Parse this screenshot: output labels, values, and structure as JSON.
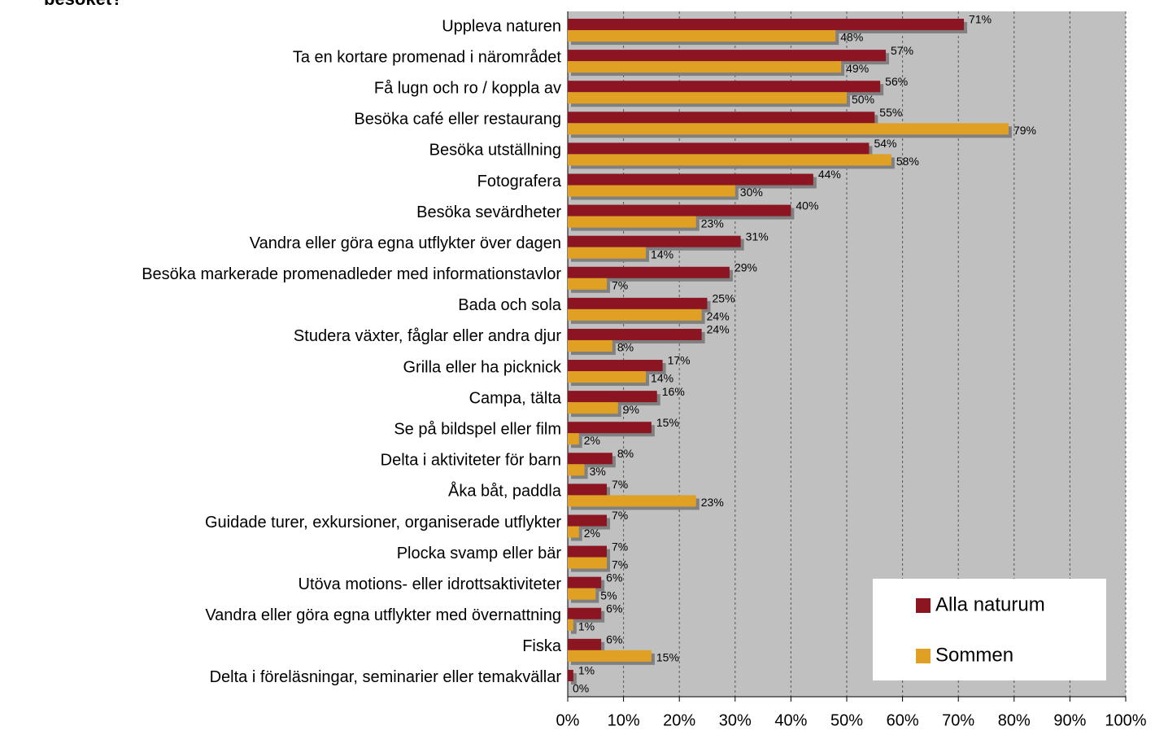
{
  "chart_data": {
    "type": "bar",
    "orientation": "horizontal",
    "title": "besöket?",
    "categories": [
      "Uppleva naturen",
      "Ta en kortare promenad i närområdet",
      "Få lugn och ro / koppla av",
      "Besöka café eller restaurang",
      "Besöka utställning",
      "Fotografera",
      "Besöka sevärdheter",
      "Vandra eller göra egna utflykter över dagen",
      "Besöka markerade promenadleder med informationstavlor",
      "Bada och sola",
      "Studera växter, fåglar eller andra djur",
      "Grilla eller ha picknick",
      "Campa, tälta",
      "Se på bildspel eller film",
      "Delta i aktiviteter för barn",
      "Åka båt, paddla",
      "Guidade turer, exkursioner, organiserade utflykter",
      "Plocka svamp eller bär",
      "Utöva motions- eller idrottsaktiviteter",
      "Vandra eller göra egna utflykter med övernattning",
      "Fiska",
      "Delta i föreläsningar, seminarier eller temakvällar"
    ],
    "series": [
      {
        "name": "Alla naturum",
        "color": "#8c1522",
        "values": [
          71,
          57,
          56,
          55,
          54,
          44,
          40,
          31,
          29,
          25,
          24,
          17,
          16,
          15,
          8,
          7,
          7,
          7,
          6,
          6,
          6,
          1
        ],
        "value_labels": [
          "71%",
          "57%",
          "56%",
          "55%",
          "54%",
          "44%",
          "40%",
          "31%",
          "29%",
          "25%",
          "24%",
          "17%",
          "16%",
          "15%",
          "8%",
          "7%",
          "7%",
          "7%",
          "6%",
          "6%",
          "6%",
          "1%"
        ]
      },
      {
        "name": "Sommen",
        "color": "#e0a024",
        "values": [
          48,
          49,
          50,
          79,
          58,
          30,
          23,
          14,
          7,
          24,
          8,
          14,
          9,
          2,
          3,
          23,
          2,
          7,
          5,
          1,
          15,
          0
        ],
        "value_labels": [
          "48%",
          "49%",
          "50%",
          "79%",
          "58%",
          "30%",
          "23%",
          "14%",
          "7%",
          "24%",
          "8%",
          "14%",
          "9%",
          "2%",
          "3%",
          "23%",
          "2%",
          "7%",
          "5%",
          "1%",
          "15%",
          "0%"
        ]
      }
    ],
    "xlim": [
      0,
      100
    ],
    "xticks": [
      {
        "value": 0,
        "label": "0%"
      },
      {
        "value": 10,
        "label": "10%"
      },
      {
        "value": 20,
        "label": "20%"
      },
      {
        "value": 30,
        "label": "30%"
      },
      {
        "value": 40,
        "label": "40%"
      },
      {
        "value": 50,
        "label": "50%"
      },
      {
        "value": 60,
        "label": "60%"
      },
      {
        "value": 70,
        "label": "70%"
      },
      {
        "value": 80,
        "label": "80%"
      },
      {
        "value": 90,
        "label": "90%"
      },
      {
        "value": 100,
        "label": "100%"
      }
    ],
    "grid": true,
    "legend": "lower right"
  }
}
